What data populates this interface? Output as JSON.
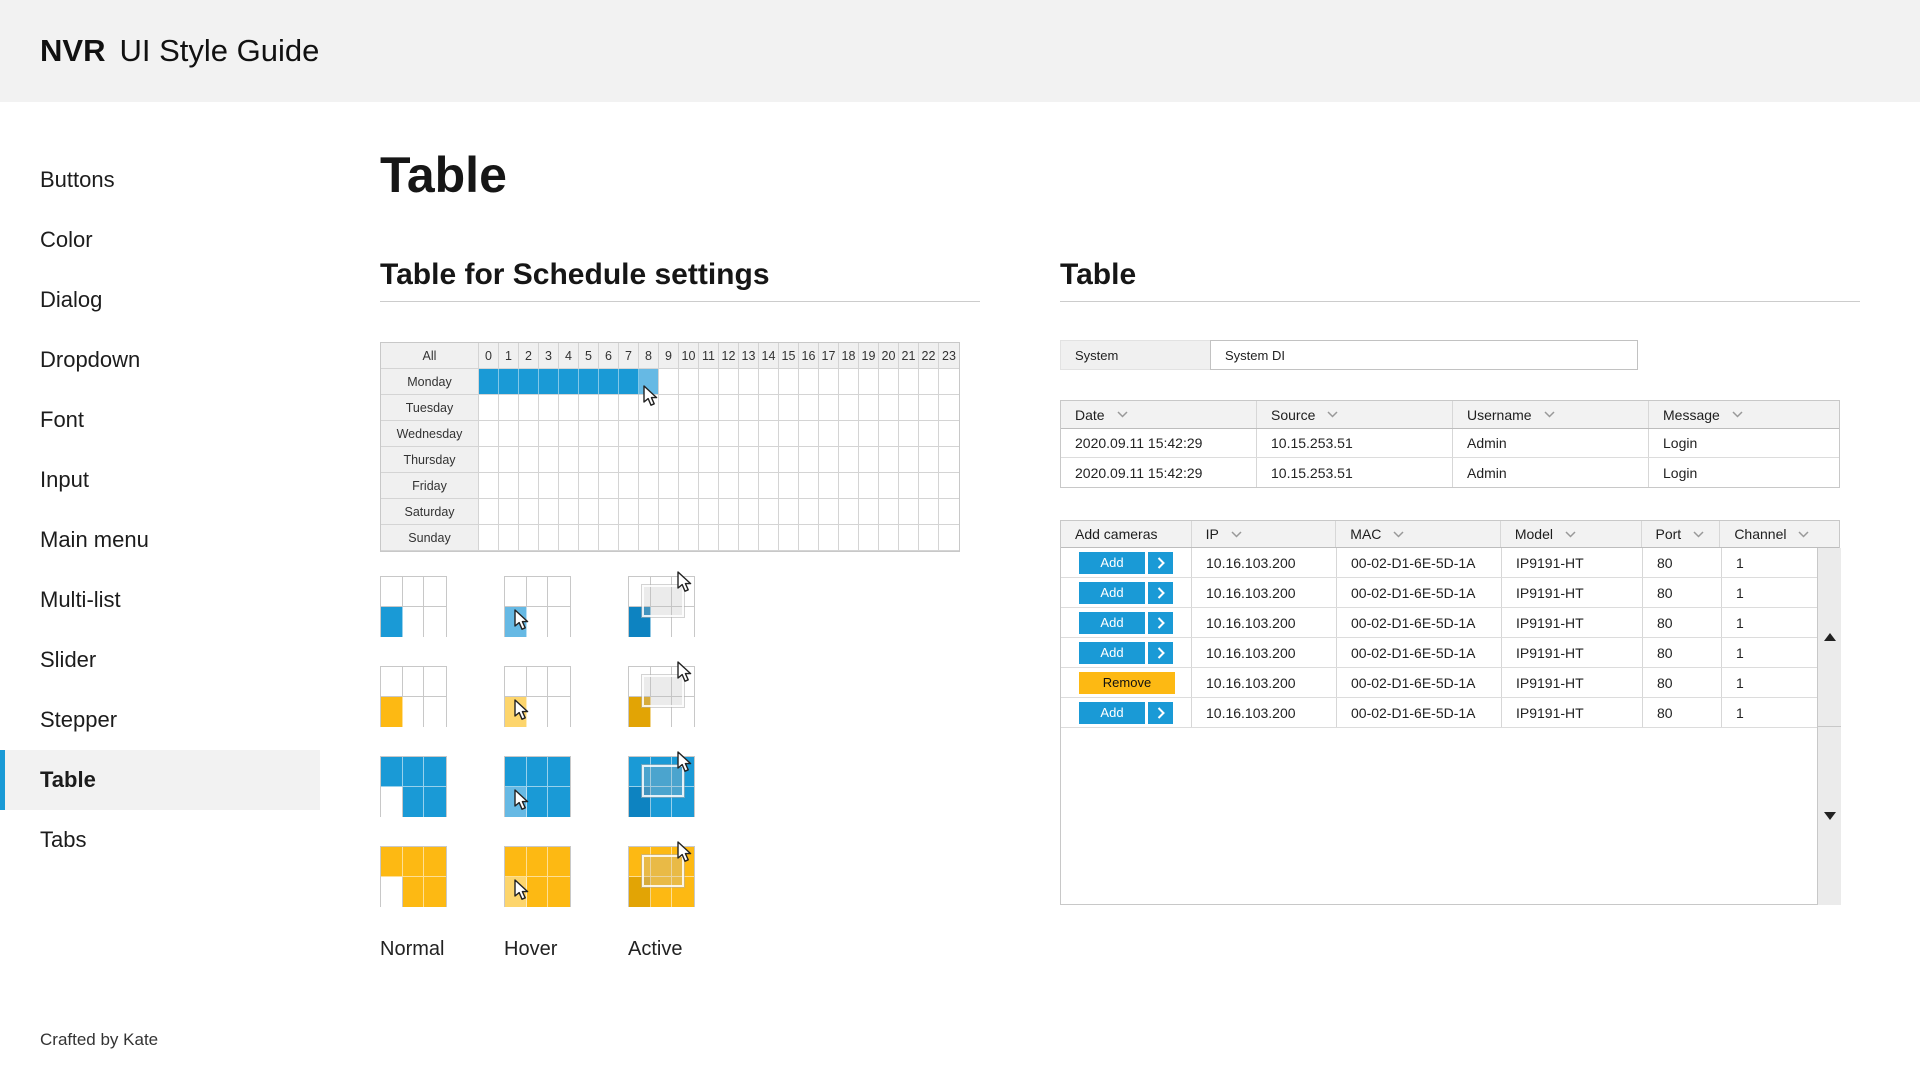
{
  "header": {
    "brand": "NVR",
    "title": "UI Style Guide"
  },
  "sidebar": {
    "items": [
      {
        "label": "Buttons",
        "active": false
      },
      {
        "label": "Color",
        "active": false
      },
      {
        "label": "Dialog",
        "active": false
      },
      {
        "label": "Dropdown",
        "active": false
      },
      {
        "label": "Font",
        "active": false
      },
      {
        "label": "Input",
        "active": false
      },
      {
        "label": "Main menu",
        "active": false
      },
      {
        "label": "Multi-list",
        "active": false
      },
      {
        "label": "Slider",
        "active": false
      },
      {
        "label": "Stepper",
        "active": false
      },
      {
        "label": "Table",
        "active": true
      },
      {
        "label": "Tabs",
        "active": false
      }
    ]
  },
  "main": {
    "page_title": "Table"
  },
  "schedule_section": {
    "title": "Table for Schedule settings",
    "grid": {
      "corner_label": "All",
      "hours": [
        "0",
        "1",
        "2",
        "3",
        "4",
        "5",
        "6",
        "7",
        "8",
        "9",
        "10",
        "11",
        "12",
        "13",
        "14",
        "15",
        "16",
        "17",
        "18",
        "19",
        "20",
        "21",
        "22",
        "23"
      ],
      "days": [
        "Monday",
        "Tuesday",
        "Wednesday",
        "Thursday",
        "Friday",
        "Saturday",
        "Sunday"
      ],
      "selection": {
        "day": "Monday",
        "solid_hours": [
          0,
          1,
          2,
          3,
          4,
          5,
          6,
          7
        ],
        "hover_hour": 8
      }
    },
    "states": {
      "labels": [
        "Normal",
        "Hover",
        "Active"
      ],
      "rows": [
        {
          "scheme": "blue",
          "mode": "single"
        },
        {
          "scheme": "yellow",
          "mode": "single"
        },
        {
          "scheme": "blue",
          "mode": "filled"
        },
        {
          "scheme": "yellow",
          "mode": "filled"
        }
      ]
    }
  },
  "table_section": {
    "title": "Table",
    "system_field": {
      "label": "System",
      "value": "System DI"
    },
    "log_table": {
      "columns": [
        "Date",
        "Source",
        "Username",
        "Message"
      ],
      "rows": [
        [
          "2020.09.11 15:42:29",
          "10.15.253.51",
          "Admin",
          "Login"
        ],
        [
          "2020.09.11 15:42:29",
          "10.15.253.51",
          "Admin",
          "Login"
        ]
      ]
    },
    "camera_table": {
      "columns": [
        "Add cameras",
        "IP",
        "MAC",
        "Model",
        "Port",
        "Channel"
      ],
      "sortable_columns": [
        "IP",
        "MAC",
        "Model",
        "Port",
        "Channel"
      ],
      "add_label": "Add",
      "remove_label": "Remove",
      "rows": [
        {
          "action": "Add",
          "ip": "10.16.103.200",
          "mac": "00-02-D1-6E-5D-1A",
          "model": "IP9191-HT",
          "port": "80",
          "channel": "1"
        },
        {
          "action": "Add",
          "ip": "10.16.103.200",
          "mac": "00-02-D1-6E-5D-1A",
          "model": "IP9191-HT",
          "port": "80",
          "channel": "1"
        },
        {
          "action": "Add",
          "ip": "10.16.103.200",
          "mac": "00-02-D1-6E-5D-1A",
          "model": "IP9191-HT",
          "port": "80",
          "channel": "1"
        },
        {
          "action": "Add",
          "ip": "10.16.103.200",
          "mac": "00-02-D1-6E-5D-1A",
          "model": "IP9191-HT",
          "port": "80",
          "channel": "1"
        },
        {
          "action": "Remove",
          "ip": "10.16.103.200",
          "mac": "00-02-D1-6E-5D-1A",
          "model": "IP9191-HT",
          "port": "80",
          "channel": "1"
        },
        {
          "action": "Add",
          "ip": "10.16.103.200",
          "mac": "00-02-D1-6E-5D-1A",
          "model": "IP9191-HT",
          "port": "80",
          "channel": "1"
        }
      ]
    }
  },
  "footer": {
    "credit": "Crafted by Kate"
  },
  "colors": {
    "accent": "#1a9ad6",
    "blue": {
      "normal": "#1a9ad6",
      "hover": "#66b9e4",
      "active": "#0d83c1"
    },
    "yellow": {
      "normal": "#fdb913",
      "hover": "#fdd56c",
      "active": "#e2a405"
    },
    "header_bg": "#f2f2f2",
    "grid_border": "#c8c8c8"
  }
}
